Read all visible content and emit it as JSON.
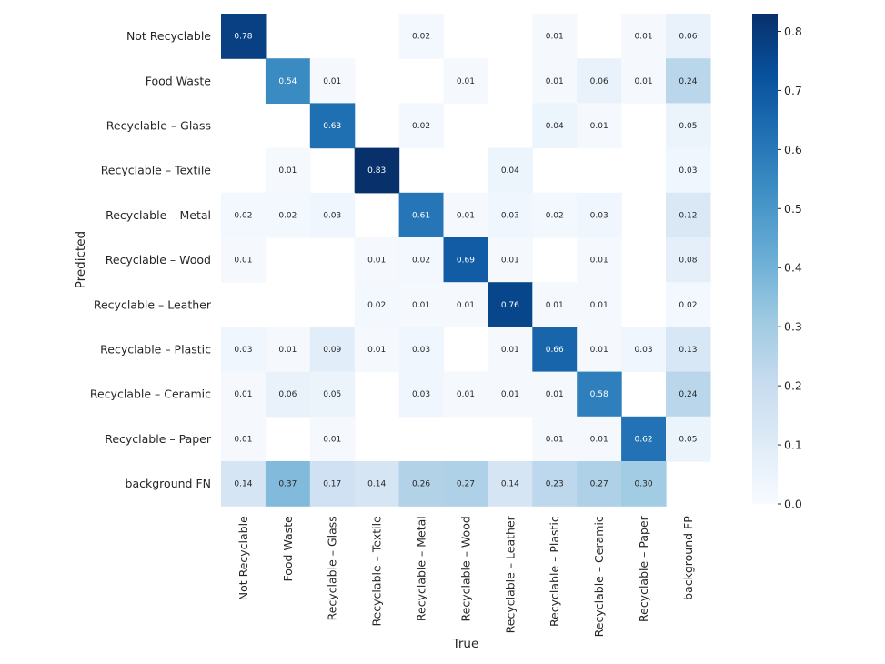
{
  "chart_data": {
    "type": "heatmap",
    "title": "",
    "xlabel": "True",
    "ylabel": "Predicted",
    "x_categories": [
      "Not Recyclable",
      "Food Waste",
      "Recyclable – Glass",
      "Recyclable – Textile",
      "Recyclable – Metal",
      "Recyclable – Wood",
      "Recyclable – Leather",
      "Recyclable – Plastic",
      "Recyclable – Ceramic",
      "Recyclable – Paper",
      "background FP"
    ],
    "y_categories": [
      "Not Recyclable",
      "Food Waste",
      "Recyclable – Glass",
      "Recyclable – Textile",
      "Recyclable – Metal",
      "Recyclable – Wood",
      "Recyclable – Leather",
      "Recyclable – Plastic",
      "Recyclable – Ceramic",
      "Recyclable – Paper",
      "background FN"
    ],
    "values": [
      [
        0.78,
        null,
        null,
        null,
        0.02,
        null,
        null,
        0.01,
        null,
        0.01,
        0.06
      ],
      [
        null,
        0.54,
        0.01,
        null,
        null,
        0.01,
        null,
        0.01,
        0.06,
        0.01,
        0.24
      ],
      [
        null,
        null,
        0.63,
        null,
        0.02,
        null,
        null,
        0.04,
        0.01,
        null,
        0.05
      ],
      [
        null,
        0.01,
        null,
        0.83,
        null,
        null,
        0.04,
        null,
        null,
        null,
        0.03
      ],
      [
        0.02,
        0.02,
        0.03,
        null,
        0.61,
        0.01,
        0.03,
        0.02,
        0.03,
        null,
        0.12
      ],
      [
        0.01,
        null,
        null,
        0.01,
        0.02,
        0.69,
        0.01,
        null,
        0.01,
        null,
        0.08
      ],
      [
        null,
        null,
        null,
        0.02,
        0.01,
        0.01,
        0.76,
        0.01,
        0.01,
        null,
        0.02
      ],
      [
        0.03,
        0.01,
        0.09,
        0.01,
        0.03,
        null,
        0.01,
        0.66,
        0.01,
        0.03,
        0.13
      ],
      [
        0.01,
        0.06,
        0.05,
        null,
        0.03,
        0.01,
        0.01,
        0.01,
        0.58,
        null,
        0.24
      ],
      [
        0.01,
        null,
        0.01,
        null,
        null,
        null,
        null,
        0.01,
        0.01,
        0.62,
        0.05
      ],
      [
        0.14,
        0.37,
        0.17,
        0.14,
        0.26,
        0.27,
        0.14,
        0.23,
        0.27,
        0.3,
        null
      ]
    ],
    "colorbar": {
      "range": [
        0.0,
        0.83
      ],
      "ticks": [
        "0.0",
        "0.1",
        "0.2",
        "0.3",
        "0.4",
        "0.5",
        "0.6",
        "0.7",
        "0.8"
      ],
      "colormap": "Blues"
    }
  }
}
